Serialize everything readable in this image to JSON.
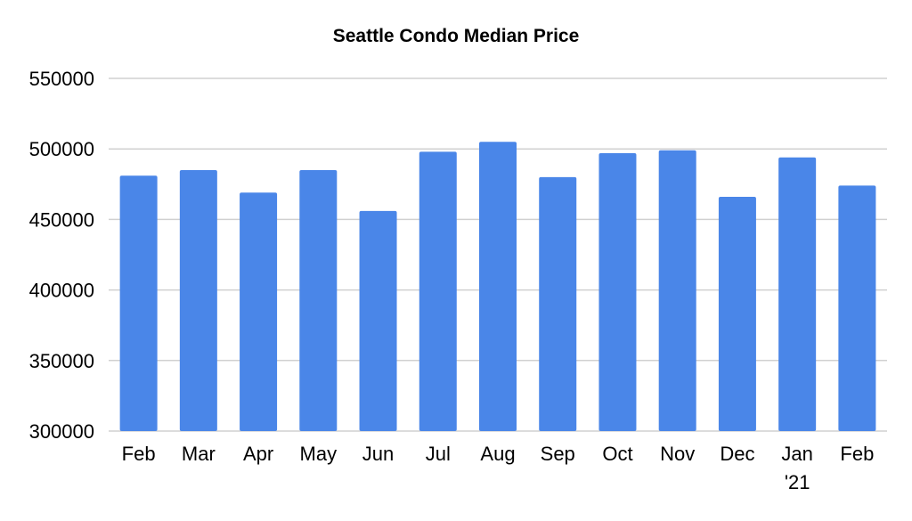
{
  "chart_data": {
    "type": "bar",
    "title": "Seattle Condo Median Price",
    "xlabel": "",
    "ylabel": "",
    "categories": [
      "Feb",
      "Mar",
      "Apr",
      "May",
      "Jun",
      "Jul",
      "Aug",
      "Sep",
      "Oct",
      "Nov",
      "Dec",
      "Jan '21",
      "Feb"
    ],
    "values": [
      481000,
      485000,
      469000,
      485000,
      456000,
      498000,
      505000,
      480000,
      497000,
      499000,
      466000,
      494000,
      474000
    ],
    "ylim": [
      300000,
      550000
    ],
    "yticks": [
      "300000",
      "350000",
      "400000",
      "450000",
      "500000",
      "550000"
    ],
    "grid": true,
    "legend": "none",
    "bar_color": "#4a86e8"
  }
}
